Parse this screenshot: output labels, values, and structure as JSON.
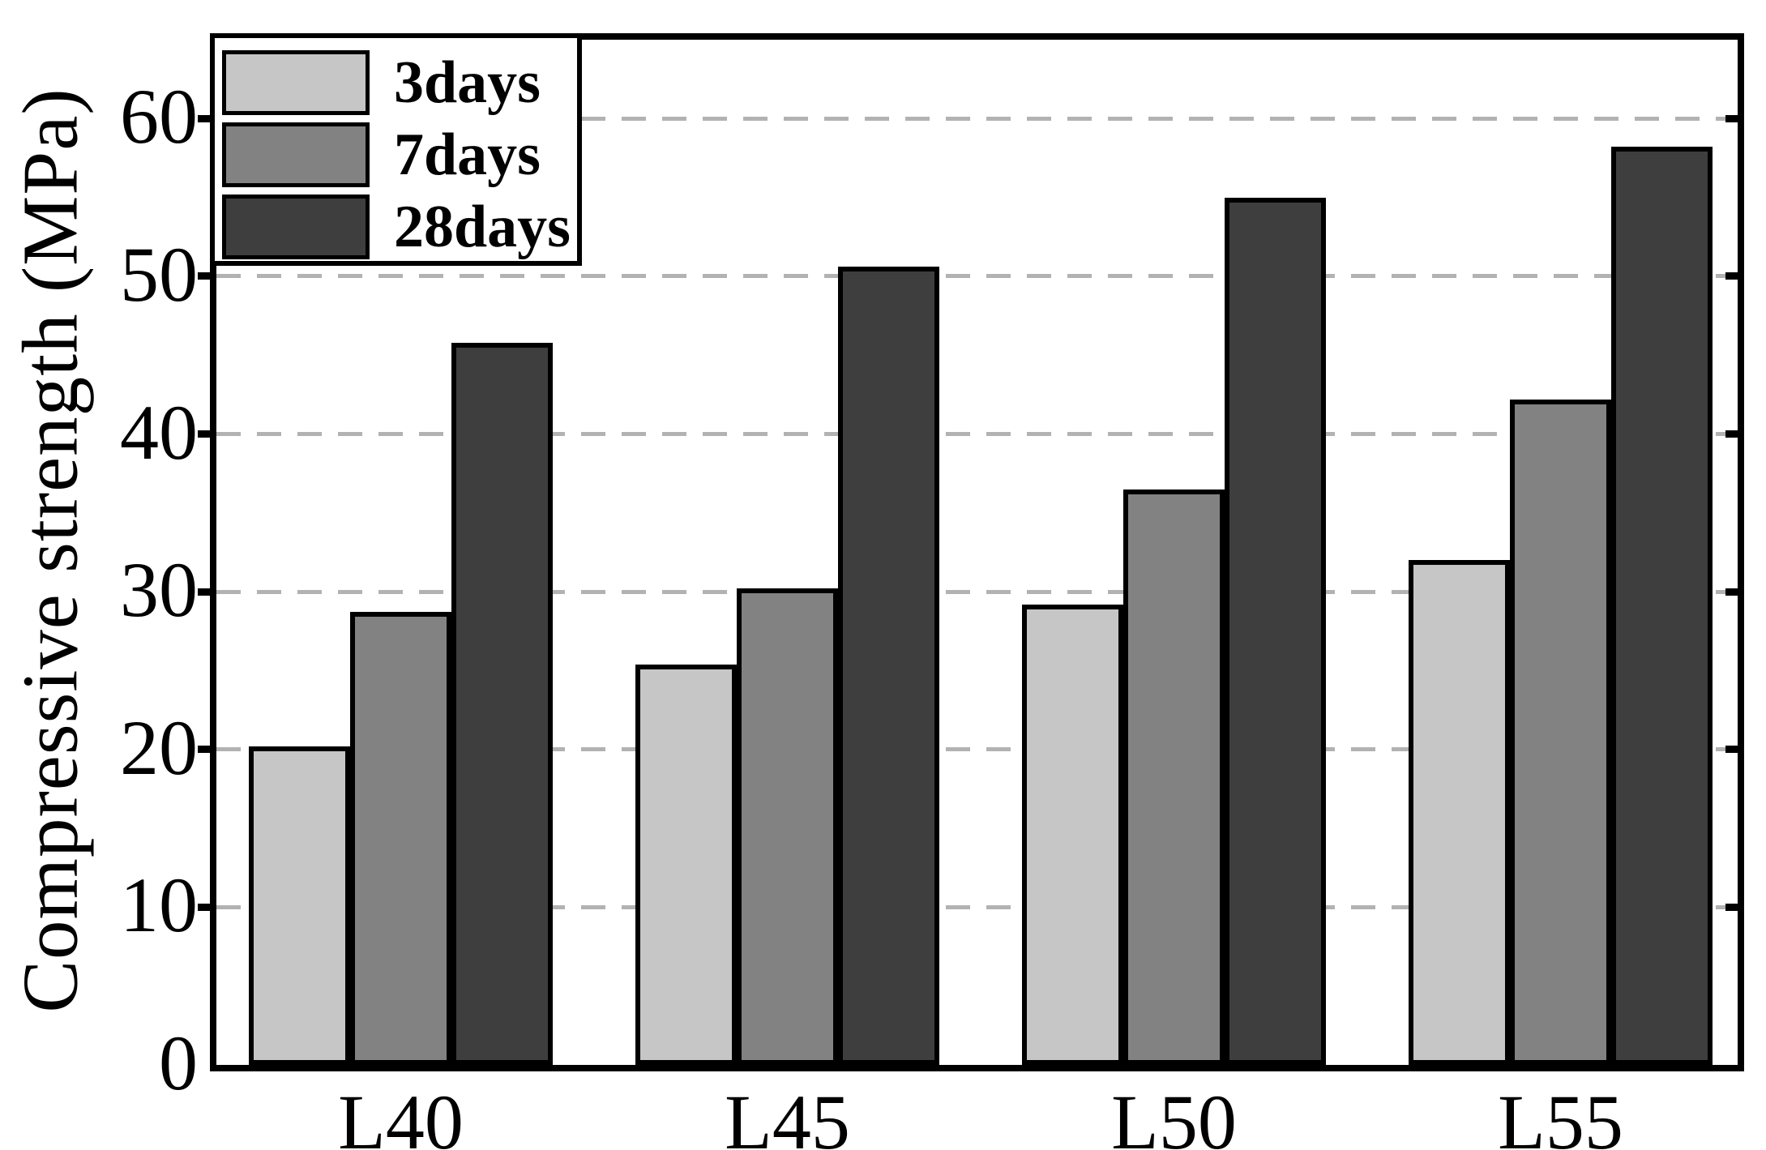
{
  "chart_data": {
    "type": "bar",
    "title": "",
    "xlabel": "",
    "ylabel": "Compressive strength (MPa)",
    "categories": [
      "L40",
      "L45",
      "L50",
      "L55"
    ],
    "series": [
      {
        "name": "3days",
        "color": "#c6c6c6",
        "values": [
          20.2,
          25.4,
          29.2,
          32.0
        ]
      },
      {
        "name": "7days",
        "color": "#828282",
        "values": [
          28.7,
          30.2,
          36.5,
          42.2
        ]
      },
      {
        "name": "28days",
        "color": "#3e3e3e",
        "values": [
          45.8,
          50.6,
          55.0,
          58.2
        ]
      }
    ],
    "ylim": [
      0,
      65
    ],
    "yticks": [
      0,
      10,
      20,
      30,
      40,
      50,
      60
    ],
    "grid": {
      "show": true,
      "axis": "y",
      "style": "dashed",
      "color": "#b2b2b2",
      "lines_at": [
        10,
        20,
        30,
        40,
        50,
        60
      ]
    },
    "legend": {
      "position": "upper-left",
      "labels": [
        "3days",
        "7days",
        "28days"
      ]
    },
    "bar_edge_color": "#000000",
    "background_color": "#ffffff"
  }
}
